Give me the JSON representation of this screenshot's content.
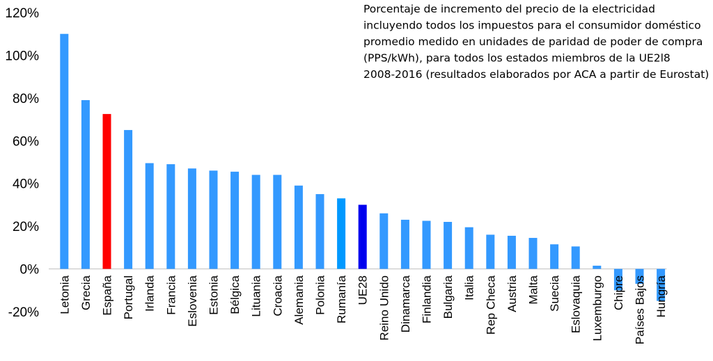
{
  "chart_data": {
    "type": "bar",
    "title_lines": [
      "Porcentaje de incremento del precio de la electricidad",
      "incluyendo todos los impuestos para el consumidor doméstico",
      "promedio medido en unidades de paridad de poder de compra",
      "(PPS/kWh), para todos los estados miembros de la UE2l8",
      "2008-2016 (resultados elaborados por ACA a partir de Eurostat)"
    ],
    "xlabel": "",
    "ylabel": "",
    "ylim": [
      -20,
      120
    ],
    "yticks": [
      "120%",
      "100%",
      "80%",
      "60%",
      "40%",
      "20%",
      "0%",
      "-20%"
    ],
    "ytick_values": [
      120,
      100,
      80,
      60,
      40,
      20,
      0,
      -20
    ],
    "grid": false,
    "legend": "none",
    "categories": [
      "Letonia",
      "Grecia",
      "España",
      "Portugal",
      "Irlanda",
      "Francia",
      "Eslovenia",
      "Estonia",
      "Bélgica",
      "Lituania",
      "Croacia",
      "Alemania",
      "Polonia",
      "Rumanía",
      "UE28",
      "Reino Unido",
      "Dinamarca",
      "Finlandia",
      "Bulgaria",
      "Italia",
      "Rep Checa",
      "Austria",
      "Malta",
      "Suecia",
      "Eslovaquia",
      "Luxemburgo",
      "Chipre",
      "Países Bajos",
      "Hungría"
    ],
    "values": [
      110,
      79,
      72.5,
      65,
      49.5,
      49,
      47,
      46,
      45.5,
      44,
      44,
      39,
      35,
      33,
      30,
      26,
      23,
      22.5,
      22,
      19.5,
      16,
      15.5,
      14.5,
      11.5,
      10.5,
      1.5,
      -10,
      -7,
      -15
    ],
    "colors": [
      "#3399ff",
      "#3399ff",
      "#ff0000",
      "#3399ff",
      "#3399ff",
      "#3399ff",
      "#3399ff",
      "#3399ff",
      "#3399ff",
      "#3399ff",
      "#3399ff",
      "#3399ff",
      "#3399ff",
      "#0099ff",
      "#0000ee",
      "#3399ff",
      "#3399ff",
      "#3399ff",
      "#3399ff",
      "#3399ff",
      "#3399ff",
      "#3399ff",
      "#3399ff",
      "#3399ff",
      "#3399ff",
      "#3399ff",
      "#3399ff",
      "#3399ff",
      "#3399ff"
    ]
  }
}
